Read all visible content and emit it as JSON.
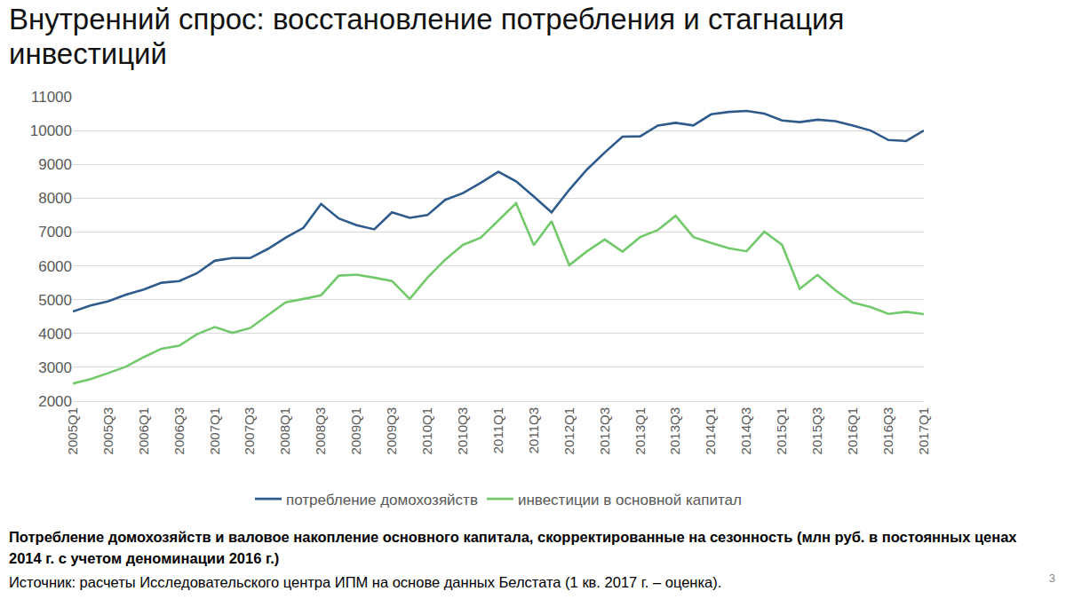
{
  "chart_data": {
    "type": "line",
    "title": "Внутренний спрос: восстановление потребления и стагнация инвестиций",
    "subtitle": "Потребление домохозяйств и валовое накопление основного капитала, скорректированные на сезонность (млн руб. в постоянных ценах 2014 г. с учетом деноминации 2016 г.)",
    "annotations": [
      "Источник: расчеты Исследовательского центра ИПМ на основе данных Белстата (1 кв. 2017 г. – оценка).",
      "3"
    ],
    "categories": [
      "2005Q1",
      null,
      "2005Q3",
      null,
      "2006Q1",
      null,
      "2006Q3",
      null,
      "2007Q1",
      null,
      "2007Q3",
      null,
      "2008Q1",
      null,
      "2008Q3",
      null,
      "2009Q1",
      null,
      "2009Q3",
      null,
      "2010Q1",
      null,
      "2010Q3",
      null,
      "2011Q1",
      null,
      "2011Q3",
      null,
      "2012Q1",
      null,
      "2012Q3",
      null,
      "2013Q1",
      null,
      "2013Q3",
      null,
      "2014Q1",
      null,
      "2014Q3",
      null,
      "2015Q1",
      null,
      "2015Q3",
      null,
      "2016Q1",
      null,
      "2016Q3",
      null,
      "2017Q1"
    ],
    "series": [
      {
        "name": "потребление домохозяйств",
        "color": "#2f5b8c",
        "values": [
          4650,
          4830,
          4950,
          5150,
          5300,
          5500,
          5550,
          5780,
          6150,
          6230,
          6230,
          6500,
          6830,
          7120,
          7830,
          7400,
          7200,
          7080,
          7580,
          7420,
          7500,
          7950,
          8150,
          8450,
          8780,
          8500,
          8050,
          7580,
          8250,
          8850,
          9350,
          9820,
          9830,
          10150,
          10230,
          10150,
          10480,
          10550,
          10580,
          10500,
          10300,
          10250,
          10320,
          10280,
          10150,
          10000,
          9720,
          9690,
          10000
        ]
      },
      {
        "name": "инвестиции в основной капитал",
        "color": "#72c96b",
        "values": [
          2520,
          2650,
          2830,
          3020,
          3300,
          3550,
          3640,
          3980,
          4190,
          4020,
          4160,
          4530,
          4920,
          5020,
          5130,
          5710,
          5740,
          5650,
          5550,
          5020,
          5650,
          6180,
          6620,
          6830,
          7340,
          7850,
          6610,
          7320,
          6020,
          6430,
          6780,
          6420,
          6850,
          7060,
          7480,
          6850,
          6680,
          6520,
          6430,
          7010,
          6620,
          5320,
          5730,
          5280,
          4910,
          4780,
          4580,
          4640,
          4570
        ]
      }
    ],
    "ylim": [
      2000,
      11000
    ],
    "yticks": [
      2000,
      3000,
      4000,
      5000,
      6000,
      7000,
      8000,
      9000,
      10000,
      11000
    ],
    "grid": true,
    "legend": "bottom"
  }
}
